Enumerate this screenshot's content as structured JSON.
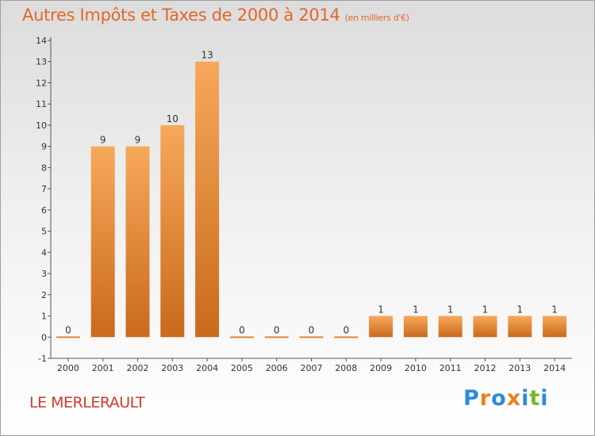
{
  "header": {
    "title": "Autres Impôts et Taxes de 2000 à 2014",
    "subtitle": "(en milliers d'€)"
  },
  "footer": {
    "commune": "LE MERLERAULT",
    "logo": "Proxiti"
  },
  "colors": {
    "bar_light": "#f7a85a",
    "bar_dark": "#c96a1c",
    "title": "#e2672b",
    "commune": "#d13b2b",
    "logo_letters": [
      "#2d8cd6",
      "#e8811e",
      "#2d8cd6",
      "#e8811e",
      "#2d8cd6",
      "#7ab828",
      "#2d8cd6"
    ]
  },
  "chart_data": {
    "type": "bar",
    "categories": [
      "2000",
      "2001",
      "2002",
      "2003",
      "2004",
      "2005",
      "2006",
      "2007",
      "2008",
      "2009",
      "2010",
      "2011",
      "2012",
      "2013",
      "2014"
    ],
    "values": [
      0,
      9,
      9,
      10,
      13,
      0,
      0,
      0,
      0,
      1,
      1,
      1,
      1,
      1,
      1
    ],
    "data_labels": [
      "0",
      "9",
      "9",
      "10",
      "13",
      "0",
      "0",
      "0",
      "0",
      "1",
      "1",
      "1",
      "1",
      "1",
      "1"
    ],
    "title": "Autres Impôts et Taxes de 2000 à 2014",
    "subtitle": "(en milliers d'€)",
    "xlabel": "",
    "ylabel": "",
    "ylim": [
      -1,
      14
    ],
    "yticks": [
      "-1",
      "0",
      "1",
      "2",
      "3",
      "4",
      "5",
      "6",
      "7",
      "8",
      "9",
      "10",
      "11",
      "12",
      "13",
      "14"
    ],
    "grid": false,
    "legend": "none"
  }
}
